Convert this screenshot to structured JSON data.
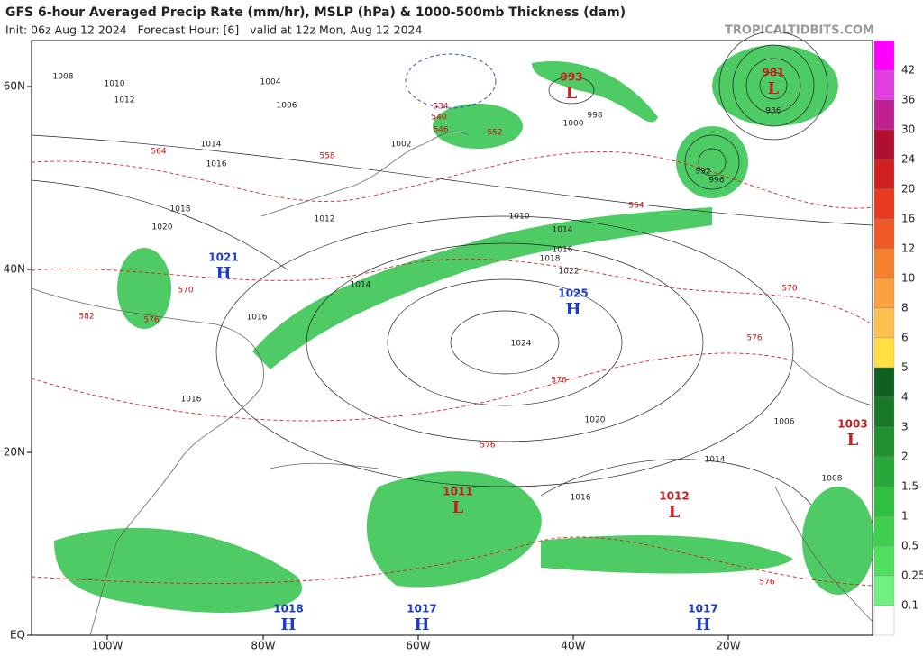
{
  "header": {
    "title": "GFS 6-hour Averaged Precip Rate (mm/hr), MSLP (hPa) & 1000-500mb Thickness (dam)",
    "init": "Init: 06z Aug 12 2024   Forecast Hour: [6]   valid at 12z Mon, Aug 12 2024",
    "site": "TROPICALTIDBITS.COM"
  },
  "map": {
    "lat_labels": [
      "60N",
      "40N",
      "20N",
      "EQ"
    ],
    "lon_labels": [
      "100W",
      "80W",
      "60W",
      "40W",
      "20W"
    ],
    "centers": [
      {
        "symbol": "H",
        "value": "1021"
      },
      {
        "symbol": "H",
        "value": "1025"
      },
      {
        "symbol": "L",
        "value": "993"
      },
      {
        "symbol": "L",
        "value": "981"
      },
      {
        "symbol": "L",
        "value": "1003"
      },
      {
        "symbol": "L",
        "value": "1011"
      },
      {
        "symbol": "L",
        "value": "1012"
      },
      {
        "symbol": "H",
        "value": "1018"
      },
      {
        "symbol": "H",
        "value": "1017"
      },
      {
        "symbol": "H",
        "value": "1017"
      }
    ],
    "isobar_labels": [
      "1008",
      "1010",
      "1012",
      "1006",
      "1004",
      "1002",
      "1014",
      "1016",
      "1018",
      "1020",
      "1022",
      "1024",
      "1000",
      "998",
      "996",
      "992",
      "986",
      "1014",
      "1016",
      "1018",
      "1020",
      "1016",
      "1014",
      "1016",
      "1012",
      "1010",
      "1014",
      "1016",
      "1008",
      "1006"
    ],
    "thickness_labels": [
      "564",
      "558",
      "552",
      "546",
      "540",
      "534",
      "570",
      "576",
      "582",
      "564",
      "570",
      "576",
      "576",
      "576",
      "576"
    ]
  },
  "colorbar": {
    "labels": [
      "42",
      "36",
      "30",
      "24",
      "20",
      "16",
      "12",
      "10",
      "8",
      "6",
      "5",
      "4",
      "3",
      "2",
      "1.5",
      "1",
      "0.5",
      "0.25",
      "0.1"
    ]
  }
}
